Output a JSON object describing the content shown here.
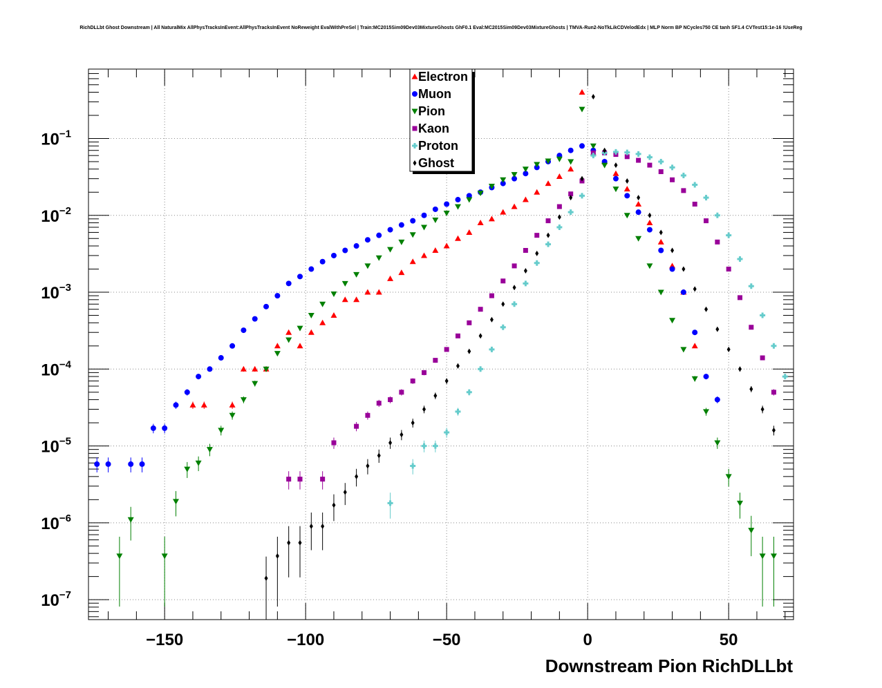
{
  "chart_data": {
    "type": "scatter",
    "title": "RichDLLbt Ghost Downstream | All NaturalMix AllPhysTracksInEvent:AllPhysTracksInEvent NoReweight EvalWithPreSel | Train:MC2015Sim09Dev03MixtureGhosts GhF0.1 Eval:MC2015Sim09Dev03MixtureGhosts | TMVA-Run2-NoTkLikCDVelodEdx | MLP Norm BP NCycles750 CE tanh SF1.4 CVTest15:1e-16 !UseReg",
    "xlabel": "Downstream Pion RichDLLbt",
    "ylabel": "",
    "xlim": [
      -177,
      73
    ],
    "ylim": [
      5.5e-08,
      0.8
    ],
    "yscale": "log",
    "grid": true,
    "legend_position": "top-center",
    "x_ticks": [
      "−150",
      "−100",
      "−50",
      "0",
      "50"
    ],
    "x_tick_values": [
      -150,
      -100,
      -50,
      0,
      50
    ],
    "y_ticks": [
      {
        "base": "10",
        "exp": "−7",
        "value": 1e-07
      },
      {
        "base": "10",
        "exp": "−6",
        "value": 1e-06
      },
      {
        "base": "10",
        "exp": "−5",
        "value": 1e-05
      },
      {
        "base": "10",
        "exp": "−4",
        "value": 0.0001
      },
      {
        "base": "10",
        "exp": "−3",
        "value": 0.001
      },
      {
        "base": "10",
        "exp": "−2",
        "value": 0.01
      },
      {
        "base": "10",
        "exp": "−1",
        "value": 0.1
      }
    ],
    "series": [
      {
        "name": "Electron",
        "color": "#ff0000",
        "marker": "triangle-up",
        "x": [
          -140,
          -136,
          -126,
          -122,
          -118,
          -114,
          -110,
          -106,
          -102,
          -98,
          -94,
          -90,
          -86,
          -82,
          -78,
          -74,
          -70,
          -66,
          -62,
          -58,
          -54,
          -50,
          -46,
          -42,
          -38,
          -34,
          -30,
          -26,
          -22,
          -18,
          -14,
          -10,
          -6,
          -2,
          2,
          6,
          10,
          14,
          18,
          22,
          26,
          30,
          34,
          38
        ],
        "y": [
          3.4e-05,
          3.4e-05,
          3.4e-05,
          0.0001,
          0.0001,
          0.0001,
          0.0002,
          0.0003,
          0.0002,
          0.0003,
          0.0004,
          0.0005,
          0.0008,
          0.0008,
          0.001,
          0.001,
          0.0015,
          0.0018,
          0.0025,
          0.003,
          0.0035,
          0.004,
          0.005,
          0.006,
          0.008,
          0.009,
          0.011,
          0.013,
          0.016,
          0.02,
          0.026,
          0.032,
          0.04,
          0.4,
          0.065,
          0.05,
          0.035,
          0.022,
          0.014,
          0.008,
          0.0045,
          0.0022,
          0.001,
          0.0002
        ]
      },
      {
        "name": "Muon",
        "color": "#0000ff",
        "marker": "circle",
        "x": [
          -174,
          -170,
          -162,
          -158,
          -154,
          -150,
          -146,
          -142,
          -138,
          -134,
          -130,
          -126,
          -122,
          -118,
          -114,
          -110,
          -106,
          -102,
          -98,
          -94,
          -90,
          -86,
          -82,
          -78,
          -74,
          -70,
          -66,
          -62,
          -58,
          -54,
          -50,
          -46,
          -42,
          -38,
          -34,
          -30,
          -26,
          -22,
          -18,
          -14,
          -10,
          -6,
          -2,
          2,
          6,
          10,
          14,
          18,
          22,
          26,
          30,
          34,
          38,
          42,
          46
        ],
        "y": [
          5.8e-06,
          5.8e-06,
          5.8e-06,
          5.8e-06,
          1.7e-05,
          1.7e-05,
          3.4e-05,
          5e-05,
          8e-05,
          0.0001,
          0.00014,
          0.0002,
          0.00032,
          0.00045,
          0.00065,
          0.0009,
          0.0013,
          0.0016,
          0.002,
          0.0025,
          0.003,
          0.0035,
          0.004,
          0.0048,
          0.0055,
          0.0065,
          0.0075,
          0.0085,
          0.01,
          0.012,
          0.014,
          0.016,
          0.018,
          0.02,
          0.023,
          0.026,
          0.03,
          0.035,
          0.042,
          0.05,
          0.06,
          0.07,
          0.08,
          0.07,
          0.05,
          0.03,
          0.018,
          0.011,
          0.0065,
          0.0035,
          0.002,
          0.001,
          0.0003,
          8e-05,
          4e-05
        ]
      },
      {
        "name": "Pion",
        "color": "#008000",
        "marker": "triangle-down",
        "x": [
          -166,
          -162,
          -150,
          -146,
          -142,
          -138,
          -134,
          -130,
          -126,
          -122,
          -118,
          -114,
          -110,
          -106,
          -102,
          -98,
          -94,
          -90,
          -86,
          -82,
          -78,
          -74,
          -70,
          -66,
          -62,
          -58,
          -54,
          -50,
          -46,
          -42,
          -38,
          -34,
          -30,
          -26,
          -22,
          -18,
          -14,
          -10,
          -6,
          -2,
          2,
          6,
          10,
          14,
          18,
          22,
          26,
          30,
          34,
          38,
          42,
          46,
          50,
          54,
          58,
          62,
          66
        ],
        "y": [
          3.7e-07,
          1.1e-06,
          3.7e-07,
          1.9e-06,
          5e-06,
          6e-06,
          9e-06,
          1.6e-05,
          2.5e-05,
          4e-05,
          6.5e-05,
          0.0001,
          0.00016,
          0.00024,
          0.00034,
          0.0005,
          0.0007,
          0.00095,
          0.0013,
          0.0017,
          0.0022,
          0.0028,
          0.0036,
          0.0045,
          0.0056,
          0.007,
          0.0087,
          0.0107,
          0.013,
          0.016,
          0.0195,
          0.024,
          0.029,
          0.034,
          0.04,
          0.046,
          0.051,
          0.054,
          0.05,
          0.24,
          0.08,
          0.045,
          0.022,
          0.01,
          0.005,
          0.0022,
          0.001,
          0.00043,
          0.00018,
          7.5e-05,
          2.8e-05,
          1.1e-05,
          4e-06,
          1.8e-06,
          8e-07,
          3.7e-07,
          3.7e-07
        ]
      },
      {
        "name": "Kaon",
        "color": "#990099",
        "marker": "square",
        "x": [
          -106,
          -102,
          -94,
          -90,
          -82,
          -78,
          -74,
          -70,
          -66,
          -62,
          -58,
          -54,
          -50,
          -46,
          -42,
          -38,
          -34,
          -30,
          -26,
          -22,
          -18,
          -14,
          -10,
          -6,
          -2,
          2,
          6,
          10,
          14,
          18,
          22,
          26,
          30,
          34,
          38,
          42,
          46,
          50,
          54,
          58,
          62,
          66
        ],
        "y": [
          3.7e-06,
          3.7e-06,
          3.7e-06,
          1.1e-05,
          1.8e-05,
          2.5e-05,
          3.6e-05,
          4e-05,
          5e-05,
          7e-05,
          9e-05,
          0.00013,
          0.00018,
          0.00027,
          0.0004,
          0.0006,
          0.0009,
          0.0014,
          0.0022,
          0.0035,
          0.0055,
          0.0085,
          0.013,
          0.019,
          0.028,
          0.065,
          0.065,
          0.062,
          0.058,
          0.052,
          0.045,
          0.037,
          0.029,
          0.021,
          0.014,
          0.0085,
          0.0045,
          0.002,
          0.00085,
          0.00035,
          0.00014,
          5e-05
        ]
      },
      {
        "name": "Proton",
        "color": "#66cccc",
        "marker": "cross",
        "x": [
          -70,
          -62,
          -58,
          -54,
          -50,
          -46,
          -42,
          -38,
          -34,
          -30,
          -26,
          -22,
          -18,
          -14,
          -10,
          -6,
          -2,
          2,
          6,
          10,
          14,
          18,
          22,
          26,
          30,
          34,
          38,
          42,
          46,
          50,
          54,
          58,
          62,
          66,
          70
        ],
        "y": [
          1.8e-06,
          5.5e-06,
          1e-05,
          1e-05,
          1.5e-05,
          2.8e-05,
          5e-05,
          0.0001,
          0.00018,
          0.00035,
          0.0007,
          0.0013,
          0.0024,
          0.0042,
          0.007,
          0.011,
          0.018,
          0.06,
          0.065,
          0.067,
          0.066,
          0.063,
          0.057,
          0.05,
          0.042,
          0.033,
          0.025,
          0.017,
          0.01,
          0.0055,
          0.0027,
          0.0012,
          0.0005,
          0.0002,
          8e-05
        ]
      },
      {
        "name": "Ghost",
        "color": "#000000",
        "marker": "diamond",
        "x": [
          -114,
          -110,
          -106,
          -102,
          -98,
          -94,
          -90,
          -86,
          -82,
          -78,
          -74,
          -70,
          -66,
          -62,
          -58,
          -54,
          -50,
          -46,
          -42,
          -38,
          -34,
          -30,
          -26,
          -22,
          -18,
          -14,
          -10,
          -6,
          -2,
          2,
          6,
          10,
          14,
          18,
          22,
          26,
          30,
          34,
          38,
          42,
          46,
          50,
          54,
          58,
          62,
          66
        ],
        "y": [
          1.9e-07,
          3.7e-07,
          5.5e-07,
          5.5e-07,
          9e-07,
          9e-07,
          1.7e-06,
          2.5e-06,
          4e-06,
          5.5e-06,
          7.5e-06,
          1.1e-05,
          1.4e-05,
          2e-05,
          3e-05,
          4.5e-05,
          7e-05,
          0.00011,
          0.00017,
          0.00027,
          0.00044,
          0.0007,
          0.00115,
          0.0019,
          0.0032,
          0.0055,
          0.0095,
          0.017,
          0.03,
          0.35,
          0.07,
          0.045,
          0.028,
          0.017,
          0.01,
          0.006,
          0.0035,
          0.002,
          0.0011,
          0.0006,
          0.00033,
          0.00018,
          0.0001,
          5.5e-05,
          3e-05,
          1.6e-05
        ]
      }
    ]
  }
}
